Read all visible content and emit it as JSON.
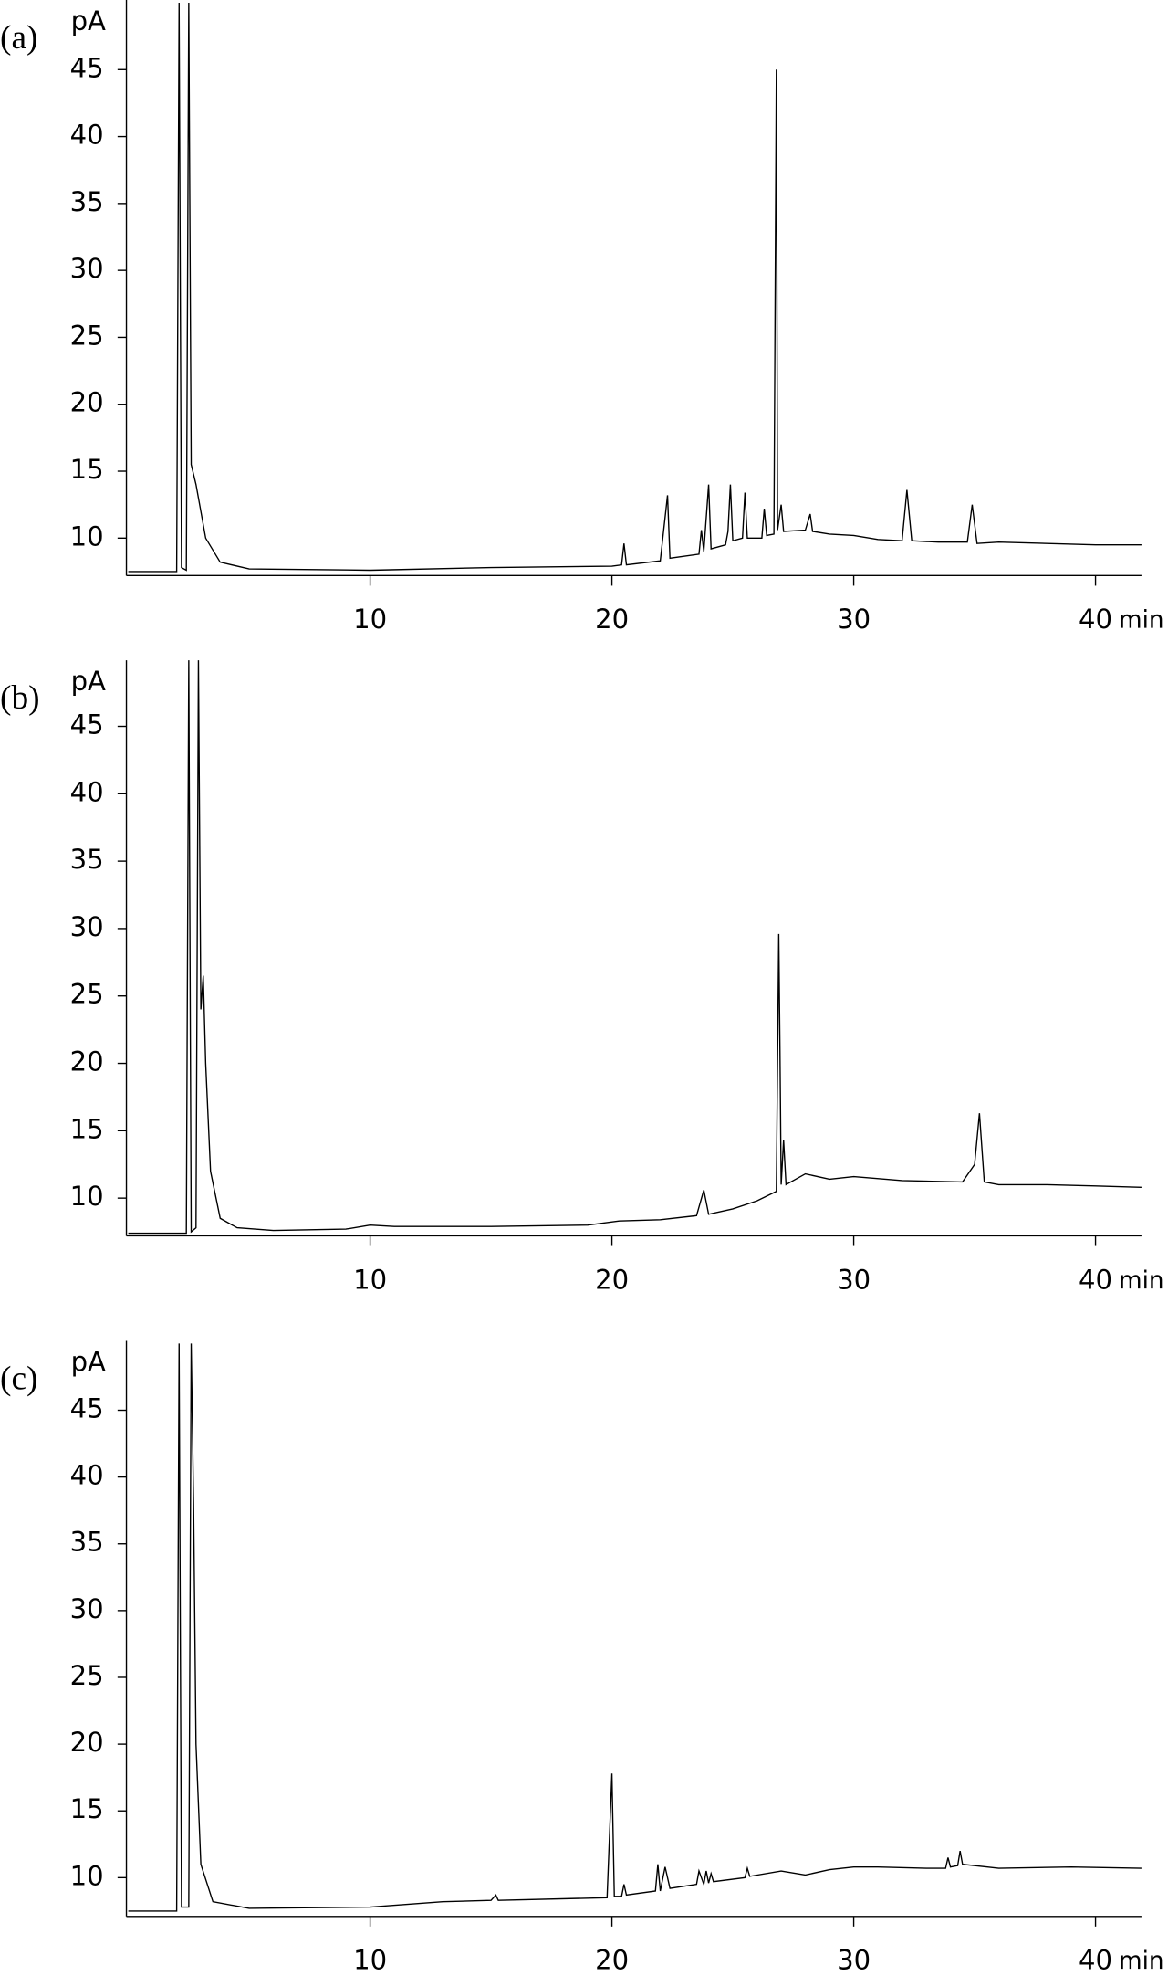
{
  "chart_data": [
    {
      "type": "line",
      "label": "(a)",
      "y_label": "pA",
      "x_label": "min",
      "color": "#000000",
      "xlim": [
        0,
        41.9
      ],
      "ylim": [
        7.2,
        50.2
      ],
      "xticks": [
        10,
        20,
        30,
        40
      ],
      "yticks": [
        10,
        15,
        20,
        25,
        30,
        35,
        40,
        45
      ],
      "x": [
        0,
        2.0,
        2.1,
        2.2,
        2.4,
        2.5,
        2.6,
        2.8,
        3.2,
        3.8,
        5,
        10,
        15,
        20,
        20.4,
        20.5,
        20.6,
        22,
        22.3,
        22.4,
        23.6,
        23.7,
        23.8,
        24,
        24.1,
        24.7,
        24.8,
        24.9,
        25,
        25.4,
        25.5,
        25.6,
        26.2,
        26.3,
        26.4,
        26.7,
        26.8,
        26.85,
        27,
        27.1,
        28,
        28.2,
        28.3,
        29,
        30,
        31,
        32,
        32.2,
        32.4,
        33.5,
        34.7,
        34.9,
        35.1,
        36,
        38,
        40,
        41.9
      ],
      "values": [
        7.5,
        7.5,
        50,
        7.8,
        7.6,
        50,
        15.5,
        14,
        10,
        8.2,
        7.7,
        7.6,
        7.8,
        7.9,
        8,
        9.6,
        8,
        8.3,
        13.2,
        8.5,
        8.8,
        10.6,
        9,
        14,
        9.2,
        9.5,
        10.5,
        14,
        9.8,
        10,
        13.4,
        10,
        10,
        12.2,
        10.2,
        10.3,
        45,
        10.6,
        12.5,
        10.5,
        10.6,
        11.8,
        10.5,
        10.3,
        10.2,
        9.9,
        9.8,
        13.6,
        9.8,
        9.7,
        9.7,
        12.5,
        9.6,
        9.7,
        9.6,
        9.5,
        9.5
      ]
    },
    {
      "type": "line",
      "label": "(b)",
      "y_label": "pA",
      "x_label": "min",
      "color": "#000000",
      "xlim": [
        0,
        41.9
      ],
      "ylim": [
        7.2,
        49.9
      ],
      "xticks": [
        10,
        20,
        30,
        40
      ],
      "yticks": [
        10,
        15,
        20,
        25,
        30,
        35,
        40,
        45
      ],
      "x": [
        0,
        2.4,
        2.5,
        2.6,
        2.8,
        2.9,
        3.0,
        3.1,
        3.2,
        3.4,
        3.8,
        4.5,
        6,
        9,
        10,
        11,
        15,
        19,
        20.3,
        22,
        23.5,
        23.8,
        24,
        25,
        26,
        26.8,
        26.9,
        26.95,
        27,
        27.1,
        27.2,
        28,
        29,
        30,
        32,
        34.5,
        35,
        35.2,
        35.4,
        36,
        38,
        40,
        41.9
      ],
      "values": [
        7.4,
        7.4,
        49.9,
        7.5,
        7.8,
        49.9,
        24,
        26.5,
        20,
        12,
        8.5,
        7.8,
        7.6,
        7.7,
        8,
        7.9,
        7.9,
        8,
        8.3,
        8.4,
        8.7,
        10.6,
        8.8,
        9.2,
        9.8,
        10.5,
        29.6,
        21,
        11,
        14.3,
        11,
        11.8,
        11.4,
        11.6,
        11.3,
        11.2,
        12.5,
        16.3,
        11.2,
        11,
        11,
        10.9,
        10.8
      ]
    },
    {
      "type": "line",
      "label": "(c)",
      "y_label": "pA",
      "x_label": "min",
      "color": "#000000",
      "xlim": [
        0,
        41.9
      ],
      "ylim": [
        7.1,
        50.2
      ],
      "xticks": [
        10,
        20,
        30,
        40
      ],
      "yticks": [
        10,
        15,
        20,
        25,
        30,
        35,
        40,
        45
      ],
      "x": [
        0,
        2.0,
        2.1,
        2.2,
        2.5,
        2.6,
        2.7,
        2.8,
        3,
        3.5,
        5,
        10,
        13,
        15,
        15.2,
        15.3,
        19.8,
        20,
        20.1,
        20.4,
        20.5,
        20.6,
        21.8,
        21.9,
        22,
        22.2,
        22.4,
        23.5,
        23.6,
        23.8,
        23.9,
        24,
        24.1,
        24.2,
        25.5,
        25.6,
        25.7,
        27,
        28,
        29,
        30,
        31,
        33,
        33.8,
        33.9,
        34,
        34.3,
        34.4,
        34.5,
        36,
        39,
        41.9
      ],
      "values": [
        7.5,
        7.5,
        50,
        7.8,
        7.8,
        50,
        38,
        20,
        11,
        8.2,
        7.7,
        7.8,
        8.2,
        8.3,
        8.7,
        8.3,
        8.5,
        17.8,
        8.6,
        8.6,
        9.5,
        8.7,
        9,
        11,
        9,
        10.8,
        9.2,
        9.5,
        10.5,
        9.5,
        10.5,
        9.6,
        10.3,
        9.7,
        10,
        10.7,
        10.1,
        10.5,
        10.2,
        10.6,
        10.8,
        10.8,
        10.7,
        10.7,
        11.5,
        10.8,
        10.9,
        12,
        11,
        10.7,
        10.8,
        10.7
      ]
    }
  ]
}
